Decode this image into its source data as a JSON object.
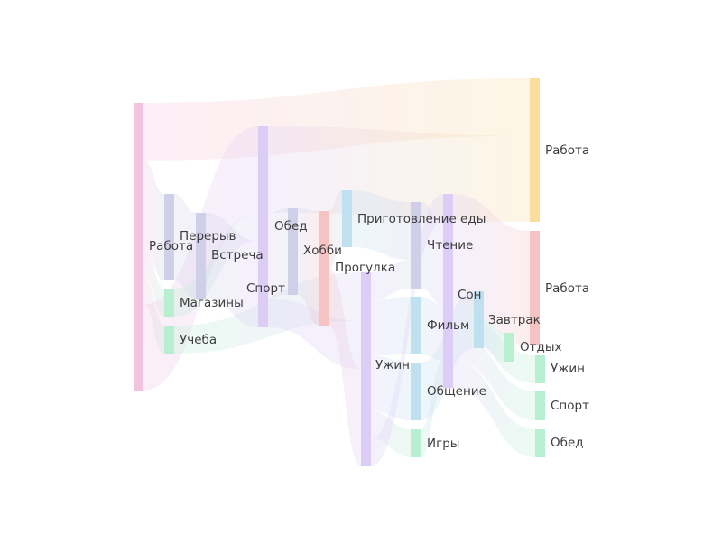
{
  "colors": {
    "pink": "#f3c4e0",
    "lavender": "#cfcfe8",
    "purple": "#dccdf6",
    "light_blue": "#bfe0ee",
    "salmon": "#f5c3c3",
    "orange": "#f9dea0",
    "green": "#b8efd0",
    "label": "#3d3d3d"
  },
  "chart_data": {
    "type": "sankey",
    "nodes": [
      {
        "id": "work_src",
        "label": "Работа",
        "level": 0,
        "value": 100,
        "color": "pink"
      },
      {
        "id": "break",
        "label": "Перерыв",
        "level": 1,
        "value": 30,
        "color": "lavender"
      },
      {
        "id": "shops",
        "label": "Магазины",
        "level": 1,
        "value": 10,
        "color": "green"
      },
      {
        "id": "study",
        "label": "Учеба",
        "level": 1,
        "value": 10,
        "color": "green"
      },
      {
        "id": "meeting",
        "label": "Встреча",
        "level": 2,
        "value": 30,
        "color": "lavender"
      },
      {
        "id": "sport_mid",
        "label": "Спорт",
        "level": 3,
        "value": 70,
        "color": "purple"
      },
      {
        "id": "lunch_mid",
        "label": "Обед",
        "level": 4,
        "value": 30,
        "color": "lavender"
      },
      {
        "id": "hobby",
        "label": "Хобби",
        "level": 5,
        "value": 40,
        "color": "salmon"
      },
      {
        "id": "cooking",
        "label": "Приготовление еды",
        "level": 6,
        "value": 20,
        "color": "light_blue"
      },
      {
        "id": "walk",
        "label": "Прогулка",
        "level": 6,
        "value": 70,
        "color": "purple"
      },
      {
        "id": "reading",
        "label": "Чтение",
        "level": 7,
        "value": 30,
        "color": "lavender"
      },
      {
        "id": "movie",
        "label": "Фильм",
        "level": 7,
        "value": 20,
        "color": "light_blue"
      },
      {
        "id": "socializing",
        "label": "Общение",
        "level": 7,
        "value": 20,
        "color": "light_blue"
      },
      {
        "id": "games",
        "label": "Игры",
        "level": 7,
        "value": 10,
        "color": "green"
      },
      {
        "id": "dinner_mid",
        "label": "Ужин",
        "level": 8,
        "value": 70,
        "color": "purple"
      },
      {
        "id": "sleep",
        "label": "Сон",
        "level": 9,
        "value": 20,
        "color": "light_blue"
      },
      {
        "id": "breakfast",
        "label": "Завтрак",
        "level": 10,
        "value": 10,
        "color": "green"
      },
      {
        "id": "work_out1",
        "label": "Работа",
        "level": 11,
        "value": 50,
        "color": "orange"
      },
      {
        "id": "work_out2",
        "label": "Работа",
        "level": 11,
        "value": 40,
        "color": "salmon"
      },
      {
        "id": "rest",
        "label": "Отдых",
        "level": 11,
        "value": 10,
        "color": "green"
      },
      {
        "id": "dinner_out",
        "label": "Ужин",
        "level": 11,
        "value": 10,
        "color": "green"
      },
      {
        "id": "sport_out",
        "label": "Спорт",
        "level": 11,
        "value": 10,
        "color": "green"
      },
      {
        "id": "lunch_out",
        "label": "Обед",
        "level": 11,
        "value": 10,
        "color": "green"
      }
    ],
    "links": [
      {
        "source": "work_src",
        "target": "work_out1",
        "value": 20
      },
      {
        "source": "work_src",
        "target": "break",
        "value": 30
      },
      {
        "source": "work_src",
        "target": "shops",
        "value": 10
      },
      {
        "source": "work_src",
        "target": "study",
        "value": 10
      },
      {
        "source": "work_src",
        "target": "sport_mid",
        "value": 30
      },
      {
        "source": "break",
        "target": "meeting",
        "value": 30
      },
      {
        "source": "shops",
        "target": "sport_mid",
        "value": 10
      },
      {
        "source": "study",
        "target": "walk",
        "value": 10
      },
      {
        "source": "meeting",
        "target": "sport_mid",
        "value": 30
      },
      {
        "source": "sport_mid",
        "target": "work_out1",
        "value": 30
      },
      {
        "source": "sport_mid",
        "target": "lunch_mid",
        "value": 30
      },
      {
        "source": "sport_mid",
        "target": "walk",
        "value": 10
      },
      {
        "source": "lunch_mid",
        "target": "hobby",
        "value": 30
      },
      {
        "source": "hobby",
        "target": "cooking",
        "value": 20
      },
      {
        "source": "hobby",
        "target": "walk",
        "value": 20
      },
      {
        "source": "cooking",
        "target": "reading",
        "value": 20
      },
      {
        "source": "walk",
        "target": "reading",
        "value": 10
      },
      {
        "source": "walk",
        "target": "movie",
        "value": 20
      },
      {
        "source": "walk",
        "target": "socializing",
        "value": 20
      },
      {
        "source": "walk",
        "target": "games",
        "value": 10
      },
      {
        "source": "walk",
        "target": "dinner_mid",
        "value": 10
      },
      {
        "source": "reading",
        "target": "dinner_mid",
        "value": 30
      },
      {
        "source": "movie",
        "target": "dinner_mid",
        "value": 20
      },
      {
        "source": "socializing",
        "target": "sleep",
        "value": 20
      },
      {
        "source": "games",
        "target": "dinner_mid",
        "value": 10
      },
      {
        "source": "dinner_mid",
        "target": "work_out2",
        "value": 40
      },
      {
        "source": "dinner_mid",
        "target": "dinner_out",
        "value": 10
      },
      {
        "source": "dinner_mid",
        "target": "sport_out",
        "value": 10
      },
      {
        "source": "dinner_mid",
        "target": "lunch_out",
        "value": 10
      },
      {
        "source": "sleep",
        "target": "breakfast",
        "value": 10
      },
      {
        "source": "sleep",
        "target": "rest",
        "value": 10
      }
    ]
  }
}
